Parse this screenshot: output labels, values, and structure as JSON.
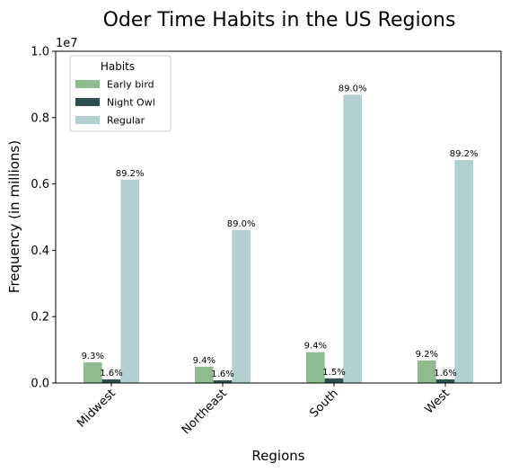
{
  "chart_data": {
    "type": "bar",
    "title": "Oder Time Habits in the US Regions",
    "xlabel": "Regions",
    "ylabel": "Frequency (in millions)",
    "y_offset_label": "1e7",
    "ylim": [
      0,
      1.0
    ],
    "yticks": [
      "0.0",
      "0.2",
      "0.4",
      "0.6",
      "0.8",
      "1.0"
    ],
    "grid": false,
    "legend": {
      "title": "Habits",
      "position": "top-left"
    },
    "categories": [
      "Midwest",
      "Northeast",
      "South",
      "West"
    ],
    "series": [
      {
        "name": "Early bird",
        "color": "#8fbc8f",
        "values": [
          0.062,
          0.049,
          0.093,
          0.068
        ],
        "labels": [
          "9.3%",
          "9.4%",
          "9.4%",
          "9.2%"
        ]
      },
      {
        "name": "Night Owl",
        "color": "#2f4f4f",
        "values": [
          0.011,
          0.008,
          0.014,
          0.011
        ],
        "labels": [
          "1.6%",
          "1.6%",
          "1.5%",
          "1.6%"
        ]
      },
      {
        "name": "Regular",
        "color": "#b4cfcf",
        "values": [
          0.613,
          0.461,
          0.869,
          0.672
        ],
        "labels": [
          "89.2%",
          "89.0%",
          "89.0%",
          "89.2%"
        ]
      }
    ]
  }
}
